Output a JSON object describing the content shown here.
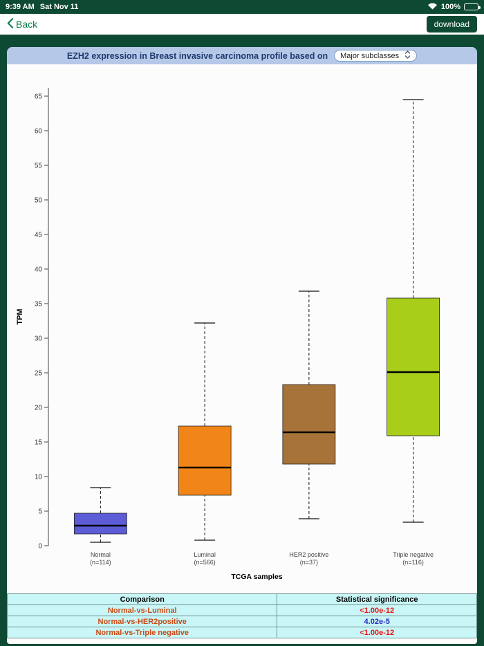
{
  "colors": {
    "theme_green": "#0e4a33",
    "link_green": "#0a7d45",
    "header_blue": "#b6c8e8",
    "title_navy": "#1d3a6e",
    "comparison_text": "#cc4a14",
    "table_bg": "#c9f6f6",
    "table_border": "#6f9090"
  },
  "status_bar": {
    "time": "9:39 AM",
    "date": "Sat Nov 11",
    "battery_percent": "100%"
  },
  "nav": {
    "back_label": "Back",
    "download_label": "download"
  },
  "header": {
    "title": "EZH2 expression in Breast invasive carcinoma profile based on",
    "dropdown_value": "Major subclasses"
  },
  "chart_data": {
    "type": "boxplot",
    "ylabel": "TPM",
    "xlabel": "TCGA samples",
    "ylim": [
      0,
      67
    ],
    "y_ticks": [
      0,
      5,
      10,
      15,
      20,
      25,
      30,
      35,
      40,
      45,
      50,
      55,
      60,
      65
    ],
    "categories": [
      {
        "label": "Normal",
        "n_label": "(n=114)",
        "color": "#5c5cd6",
        "whisker_low": 0.5,
        "q1": 1.7,
        "median": 2.9,
        "q3": 4.7,
        "whisker_high": 8.4
      },
      {
        "label": "Luminal",
        "n_label": "(n=566)",
        "color": "#f28518",
        "whisker_low": 0.8,
        "q1": 7.3,
        "median": 11.3,
        "q3": 17.3,
        "whisker_high": 32.2
      },
      {
        "label": "HER2 positive",
        "n_label": "(n=37)",
        "color": "#a87339",
        "whisker_low": 3.9,
        "q1": 11.8,
        "median": 16.4,
        "q3": 23.3,
        "whisker_high": 36.8
      },
      {
        "label": "Triple negative",
        "n_label": "(n=116)",
        "color": "#a8ce1a",
        "whisker_low": 3.4,
        "q1": 15.9,
        "median": 25.1,
        "q3": 35.8,
        "whisker_high": 64.5
      }
    ]
  },
  "table": {
    "headers": [
      "Comparison",
      "Statistical significance"
    ],
    "rows": [
      {
        "comparison": "Normal-vs-Luminal",
        "significance": "<1.00e-12",
        "significance_color": "#ee1111"
      },
      {
        "comparison": "Normal-vs-HER2positive",
        "significance": "4.02e-5",
        "significance_color": "#2a2ac4"
      },
      {
        "comparison": "Normal-vs-Triple negative",
        "significance": "<1.00e-12",
        "significance_color": "#ee1111"
      }
    ]
  }
}
